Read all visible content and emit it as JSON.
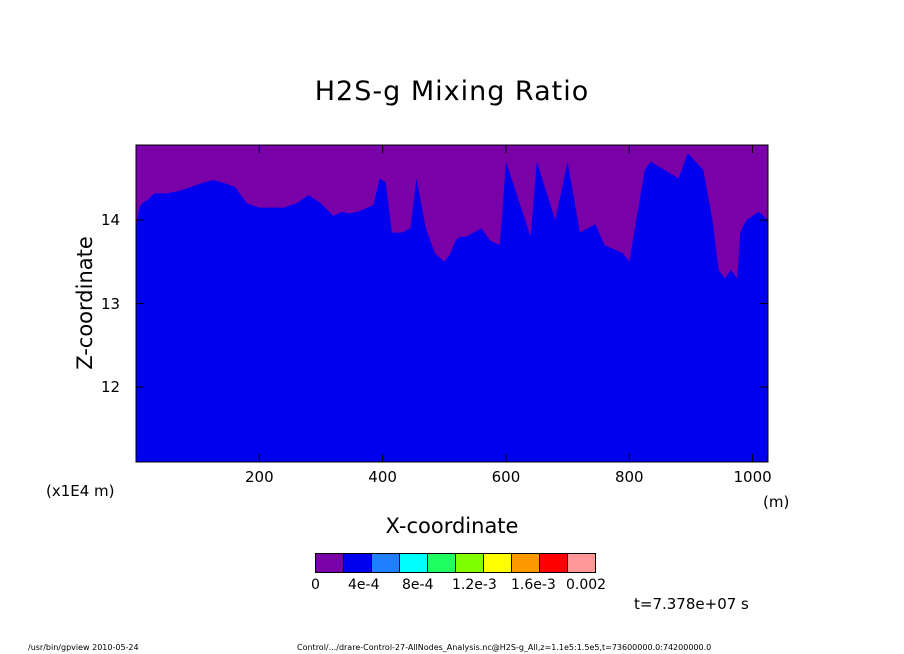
{
  "title": "H2S-g Mixing Ratio",
  "chart_data": {
    "type": "contour",
    "title": "H2S-g Mixing Ratio",
    "xlabel": "X-coordinate",
    "ylabel": "Z-coordinate",
    "x_unit": "(m)",
    "y_scale_label": "(x1E4 m)",
    "xlim": [
      0,
      1025
    ],
    "ylim": [
      11.1,
      14.9
    ],
    "x_ticks": [
      200,
      400,
      600,
      800,
      1000
    ],
    "y_ticks": [
      12,
      13,
      14
    ],
    "x_tick_labels": [
      "200",
      "400",
      "600",
      "800",
      "1000"
    ],
    "y_tick_labels": [
      "12",
      "13",
      "14"
    ],
    "fill_color_lower": "#0000ee",
    "fill_color_upper": "#7a00a8",
    "boundary": {
      "x": [
        0,
        5,
        10,
        20,
        30,
        50,
        70,
        90,
        110,
        125,
        140,
        160,
        180,
        200,
        220,
        240,
        260,
        280,
        300,
        320,
        335,
        345,
        360,
        385,
        395,
        405,
        415,
        430,
        445,
        455,
        470,
        485,
        500,
        505,
        510,
        518,
        525,
        535,
        560,
        575,
        590,
        600,
        640,
        650,
        680,
        700,
        720,
        745,
        760,
        790,
        800,
        825,
        835,
        880,
        895,
        920,
        935,
        945,
        955,
        965,
        975,
        980,
        990,
        1000,
        1010,
        1025
      ],
      "z": [
        13.9,
        14.15,
        14.2,
        14.25,
        14.32,
        14.32,
        14.35,
        14.4,
        14.45,
        14.48,
        14.45,
        14.4,
        14.2,
        14.15,
        14.15,
        14.15,
        14.2,
        14.3,
        14.2,
        14.05,
        14.1,
        14.08,
        14.1,
        14.18,
        14.5,
        14.45,
        13.85,
        13.85,
        13.9,
        14.5,
        13.9,
        13.6,
        13.5,
        13.55,
        13.6,
        13.75,
        13.8,
        13.8,
        13.9,
        13.75,
        13.7,
        14.7,
        13.8,
        14.7,
        14.0,
        14.7,
        13.85,
        13.95,
        13.7,
        13.6,
        13.5,
        14.6,
        14.7,
        14.5,
        14.8,
        14.6,
        14.0,
        13.4,
        13.3,
        13.4,
        13.3,
        13.85,
        14.0,
        14.05,
        14.1,
        14.0
      ]
    },
    "colorbar": {
      "colors": [
        "#7a00a8",
        "#0000ee",
        "#1f7fff",
        "#00ffff",
        "#1fff5f",
        "#7fff00",
        "#ffff00",
        "#ff9900",
        "#ff0000",
        "#ff9999"
      ],
      "labels": [
        "0",
        "4e-4",
        "8e-4",
        "1.2e-3",
        "1.6e-3",
        "0.002"
      ]
    },
    "time_label": "t=7.378e+07 s"
  },
  "footer": {
    "left": "/usr/bin/gpview   2010-05-24",
    "right": "Control/.../drare-Control-27-AllNodes_Analysis.nc@H2S-g_All,z=1.1e5:1.5e5,t=73600000.0:74200000.0"
  }
}
